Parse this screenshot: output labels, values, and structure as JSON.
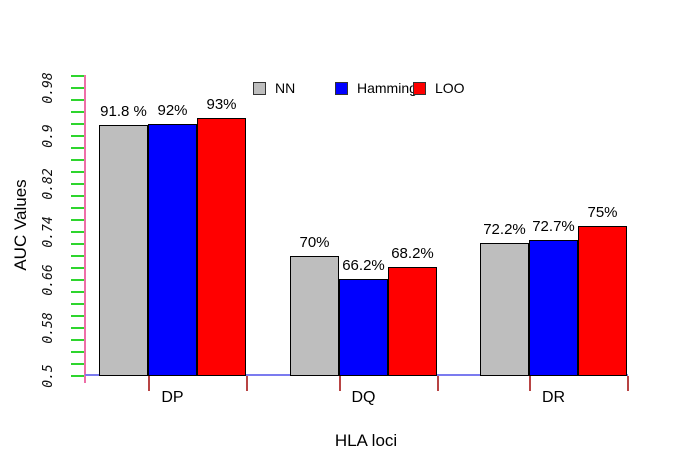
{
  "chart_data": {
    "type": "bar",
    "title": "",
    "xlabel": "HLA loci",
    "ylabel": "AUC Values",
    "categories": [
      "DP",
      "DQ",
      "DR"
    ],
    "series": [
      {
        "name": "NN",
        "color": "#bebebe",
        "values": [
          0.918,
          0.7,
          0.722
        ],
        "value_labels": [
          "91.8 %",
          "70%",
          "72.2%"
        ]
      },
      {
        "name": "Hamming",
        "color": "#0000ff",
        "values": [
          0.92,
          0.662,
          0.727
        ],
        "value_labels": [
          "92%",
          "66.2%",
          "72.7%"
        ]
      },
      {
        "name": "LOO",
        "color": "#ff0000",
        "values": [
          0.93,
          0.682,
          0.75
        ],
        "value_labels": [
          "93%",
          "68.2%",
          "75%"
        ]
      }
    ],
    "ylim": [
      0.5,
      1.0
    ],
    "ytick_step": 0.02,
    "ytick_labels": [
      "0.5",
      "0.58",
      "0.66",
      "0.74",
      "0.82",
      "0.9",
      "0.98"
    ],
    "legend_position": "top-center",
    "grid": false,
    "axis_style": {
      "y_axis_color": "#ee6fa8",
      "y_tick_color": "#2ed52e",
      "x_axis_color": "#7b7bef",
      "x_tick_color": "#b84444"
    }
  }
}
